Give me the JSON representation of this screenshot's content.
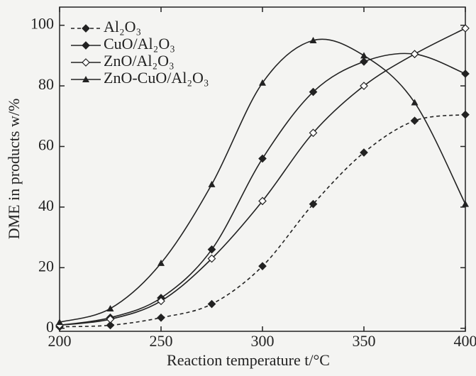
{
  "chart_data": {
    "type": "line",
    "x_label": "Reaction temperature t/°C",
    "y_label": "DME in products w/%",
    "x": [
      200,
      225,
      250,
      275,
      300,
      325,
      350,
      375,
      400
    ],
    "series": [
      {
        "name": "Al₂O₃",
        "color": "#222222",
        "marker": "diamond-filled",
        "dashed": true,
        "values": [
          0.5,
          1,
          3.5,
          8,
          20.5,
          41,
          58,
          68.5,
          70.5
        ]
      },
      {
        "name": "CuO/Al₂O₃",
        "color": "#222222",
        "marker": "diamond-filled",
        "dashed": false,
        "values": [
          1,
          3.5,
          10,
          26,
          56,
          78,
          88,
          90.5,
          84
        ]
      },
      {
        "name": "ZnO/Al₂O₃",
        "color": "#222222",
        "marker": "diamond-open",
        "dashed": false,
        "values": [
          1,
          3,
          9,
          23,
          42,
          64.5,
          80,
          90.5,
          99
        ]
      },
      {
        "name": "ZnO-CuO/Al₂O₃",
        "color": "#222222",
        "marker": "triangle",
        "dashed": false,
        "values": [
          2,
          6.5,
          21.5,
          47.5,
          81,
          95,
          90,
          74.5,
          41
        ]
      }
    ],
    "xlim": [
      200,
      400
    ],
    "ylim": [
      -1,
      106
    ],
    "xticks": [
      200,
      250,
      300,
      350,
      400
    ],
    "yticks": [
      0,
      20,
      40,
      60,
      80,
      100
    ],
    "legend": "top-left"
  }
}
